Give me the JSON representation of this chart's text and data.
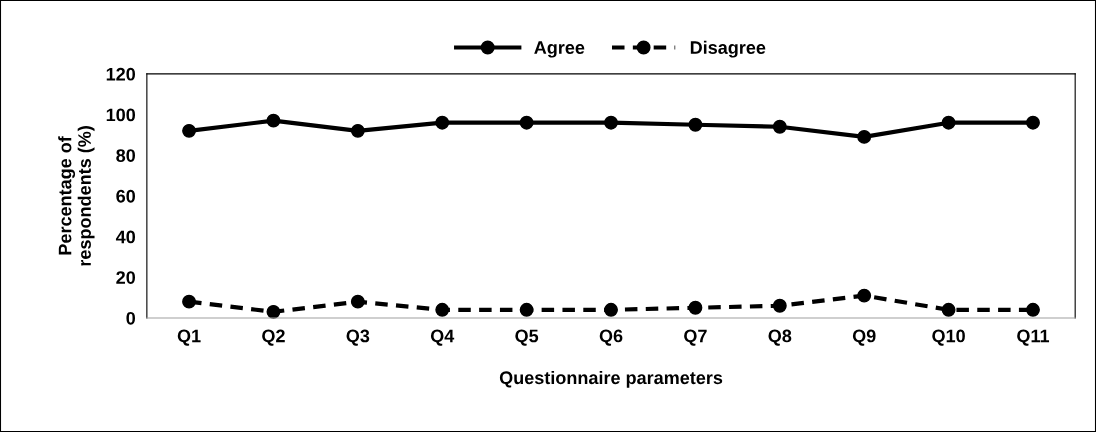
{
  "chart_data": {
    "type": "line",
    "xlabel": "Questionnaire parameters",
    "ylabel": "Percentage of\nrespondents (%)",
    "categories": [
      "Q1",
      "Q2",
      "Q3",
      "Q4",
      "Q5",
      "Q6",
      "Q7",
      "Q8",
      "Q9",
      "Q10",
      "Q11"
    ],
    "series": [
      {
        "name": "Agree",
        "color": "#000000",
        "line_style": "solid",
        "values": [
          92,
          97,
          92,
          96,
          96,
          96,
          95,
          94,
          89,
          96,
          96
        ]
      },
      {
        "name": "Disagree",
        "color": "#000000",
        "line_style": "dashed",
        "values": [
          8,
          3,
          8,
          4,
          4,
          4,
          5,
          6,
          11,
          4,
          4
        ]
      }
    ],
    "ylim": [
      0,
      120
    ],
    "yticks": [
      0,
      20,
      40,
      60,
      80,
      100,
      120
    ],
    "grid": false,
    "legend": "top",
    "marker": "circle"
  }
}
